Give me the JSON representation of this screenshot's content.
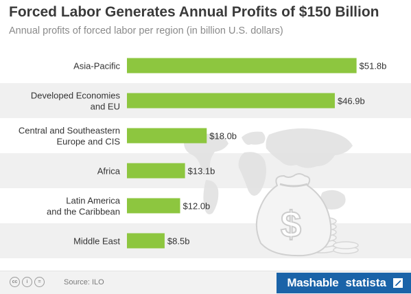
{
  "header": {
    "title": "Forced Labor Generates Annual Profits of $150 Billion",
    "subtitle": "Annual profits of forced labor per region (in billion U.S. dollars)"
  },
  "chart_data": {
    "type": "bar",
    "orientation": "horizontal",
    "categories": [
      [
        "Asia-Pacific"
      ],
      [
        "Developed Economies",
        "and EU"
      ],
      [
        "Central and Southeastern",
        "Europe and CIS"
      ],
      [
        "Africa"
      ],
      [
        "Latin America",
        "and the Caribbean"
      ],
      [
        "Middle East"
      ]
    ],
    "values": [
      51.8,
      46.9,
      18.0,
      13.1,
      12.0,
      8.5
    ],
    "value_labels": [
      "$51.8b",
      "$46.9b",
      "$18.0b",
      "$13.1b",
      "$12.0b",
      "$8.5b"
    ],
    "bar_color": "#8dc63f",
    "alt_row_color": "#f0f0f0",
    "grid": false,
    "legend": "none"
  },
  "footer": {
    "source": "Source: ILO",
    "license_icons": [
      "cc-icon",
      "by-icon",
      "nd-icon"
    ],
    "license_glyphs": [
      "cc",
      "i",
      "="
    ],
    "brand1": "Mashable",
    "brand2": "statista",
    "brand_color": "#1a63a8"
  }
}
